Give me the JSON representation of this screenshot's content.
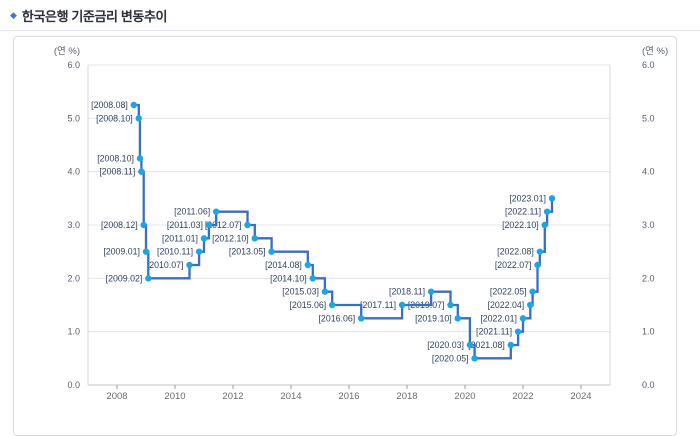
{
  "header": {
    "bullet": "◆",
    "title": "한국은행 기준금리 변동추이"
  },
  "chart_data": {
    "type": "line",
    "subtype": "step-after",
    "title": "한국은행 기준금리 변동추이",
    "unit_label_left": "(연 %)",
    "unit_label_right": "(연 %)",
    "grid": true,
    "legend": "none",
    "x_axis": {
      "min": 2007,
      "max": 2025,
      "tick_years": [
        2008,
        2010,
        2012,
        2014,
        2016,
        2018,
        2020,
        2022,
        2024
      ]
    },
    "y_axis": {
      "min": 0,
      "max": 6,
      "tick_labels": [
        "0.0",
        "1.0",
        "2.0",
        "3.0",
        "4.0",
        "5.0",
        "6.0"
      ]
    },
    "colors": {
      "line": "#3d6dc0",
      "marker": "#1da4e2",
      "point_label": "#32435f",
      "grid": "#e4e4e4",
      "plot_border": "#d9d9d9",
      "axis_line": "#c6c6c6",
      "tick_mark": "#9f9f9f",
      "axis_text": "#6b6b6b",
      "y_text": "#5a6070"
    },
    "points": [
      {
        "label": "[2008.08]",
        "x": 2008.58,
        "value": 5.25
      },
      {
        "label": "[2008.10]",
        "x": 2008.75,
        "value": 5.0
      },
      {
        "label": "[2008.10]",
        "x": 2008.79,
        "value": 4.25
      },
      {
        "label": "[2008.11]",
        "x": 2008.84,
        "value": 4.0
      },
      {
        "label": "[2008.12]",
        "x": 2008.92,
        "value": 3.0
      },
      {
        "label": "[2009.01]",
        "x": 2009.0,
        "value": 2.5
      },
      {
        "label": "[2009.02]",
        "x": 2009.08,
        "value": 2.0
      },
      {
        "label": "[2010.07]",
        "x": 2010.5,
        "value": 2.25
      },
      {
        "label": "[2010.11]",
        "x": 2010.83,
        "value": 2.5
      },
      {
        "label": "[2011.01]",
        "x": 2011.0,
        "value": 2.75
      },
      {
        "label": "[2011.03]",
        "x": 2011.17,
        "value": 3.0
      },
      {
        "label": "[2011.06]",
        "x": 2011.42,
        "value": 3.25
      },
      {
        "label": "[2012.07]",
        "x": 2012.5,
        "value": 3.0
      },
      {
        "label": "[2012.10]",
        "x": 2012.75,
        "value": 2.75
      },
      {
        "label": "[2013.05]",
        "x": 2013.33,
        "value": 2.5
      },
      {
        "label": "[2014.08]",
        "x": 2014.58,
        "value": 2.25
      },
      {
        "label": "[2014.10]",
        "x": 2014.75,
        "value": 2.0
      },
      {
        "label": "[2015.03]",
        "x": 2015.17,
        "value": 1.75
      },
      {
        "label": "[2015.06]",
        "x": 2015.42,
        "value": 1.5
      },
      {
        "label": "[2016.06]",
        "x": 2016.42,
        "value": 1.25
      },
      {
        "label": "[2017.11]",
        "x": 2017.83,
        "value": 1.5
      },
      {
        "label": "[2018.11]",
        "x": 2018.83,
        "value": 1.75
      },
      {
        "label": "[2019.07]",
        "x": 2019.5,
        "value": 1.5
      },
      {
        "label": "[2019.10]",
        "x": 2019.75,
        "value": 1.25
      },
      {
        "label": "[2020.03]",
        "x": 2020.17,
        "value": 0.75
      },
      {
        "label": "[2020.05]",
        "x": 2020.33,
        "value": 0.5
      },
      {
        "label": "[2021.08]",
        "x": 2021.58,
        "value": 0.75
      },
      {
        "label": "[2021.11]",
        "x": 2021.83,
        "value": 1.0
      },
      {
        "label": "[2022.01]",
        "x": 2022.0,
        "value": 1.25
      },
      {
        "label": "[2022.04]",
        "x": 2022.25,
        "value": 1.5
      },
      {
        "label": "[2022.05]",
        "x": 2022.33,
        "value": 1.75
      },
      {
        "label": "[2022.07]",
        "x": 2022.5,
        "value": 2.25
      },
      {
        "label": "[2022.08]",
        "x": 2022.58,
        "value": 2.5
      },
      {
        "label": "[2022.10]",
        "x": 2022.75,
        "value": 3.0
      },
      {
        "label": "[2022.11]",
        "x": 2022.83,
        "value": 3.25
      },
      {
        "label": "[2023.01]",
        "x": 2023.0,
        "value": 3.5
      }
    ]
  }
}
